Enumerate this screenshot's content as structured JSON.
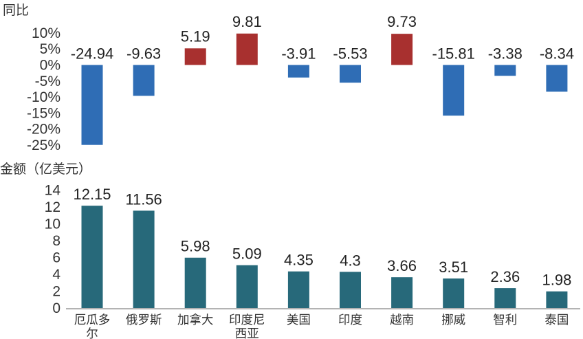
{
  "chart_data": [
    {
      "type": "bar",
      "ylabel": "同比",
      "categories": [
        "厄瓜多尔",
        "俄罗斯",
        "加拿大",
        "印度尼西亚",
        "美国",
        "印度",
        "越南",
        "挪威",
        "智利",
        "泰国"
      ],
      "values": [
        -24.94,
        -9.63,
        5.19,
        9.81,
        -3.91,
        -5.53,
        9.73,
        -15.81,
        -3.38,
        -8.34
      ],
      "value_labels": [
        "-24.94",
        "-9.63",
        "5.19",
        "9.81",
        "-3.91",
        "-5.53",
        "9.73",
        "-15.81",
        "-3.38",
        "-8.34"
      ],
      "ylim": [
        -25,
        10
      ],
      "yticks": [
        10,
        5,
        0,
        -5,
        -10,
        -15,
        -20,
        -25
      ],
      "ytick_labels": [
        "10%",
        "5%",
        "0%",
        "-5%",
        "-10%",
        "-15%",
        "-20%",
        "-25%"
      ],
      "colors": {
        "positive": "#A8302F",
        "negative": "#2F6DB5"
      },
      "grid": false
    },
    {
      "type": "bar",
      "ylabel": "金额（亿美元）",
      "categories": [
        "厄瓜多尔",
        "俄罗斯",
        "加拿大",
        "印度尼西亚",
        "美国",
        "印度",
        "越南",
        "挪威",
        "智利",
        "泰国"
      ],
      "category_lines": [
        [
          "厄瓜多",
          "尔"
        ],
        [
          "俄罗斯"
        ],
        [
          "加拿大"
        ],
        [
          "印度尼",
          "西亚"
        ],
        [
          "美国"
        ],
        [
          "印度"
        ],
        [
          "越南"
        ],
        [
          "挪威"
        ],
        [
          "智利"
        ],
        [
          "泰国"
        ]
      ],
      "values": [
        12.15,
        11.56,
        5.98,
        5.09,
        4.35,
        4.3,
        3.66,
        3.51,
        2.36,
        1.98
      ],
      "value_labels": [
        "12.15",
        "11.56",
        "5.98",
        "5.09",
        "4.35",
        "4.3",
        "3.66",
        "3.51",
        "2.36",
        "1.98"
      ],
      "ylim": [
        0,
        14
      ],
      "yticks": [
        14,
        12,
        10,
        8,
        6,
        4,
        2,
        0
      ],
      "ytick_labels": [
        "14",
        "12",
        "10",
        "8",
        "6",
        "4",
        "2",
        "0"
      ],
      "colors": {
        "bar": "#27697A"
      },
      "grid": false
    }
  ]
}
